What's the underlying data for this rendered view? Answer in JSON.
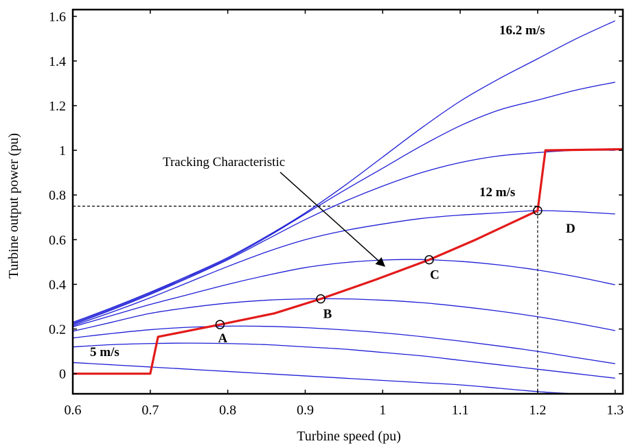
{
  "chart_data": {
    "type": "line",
    "xlabel": "Turbine speed (pu)",
    "ylabel": "Turbine output power (pu)",
    "xlim": [
      0.6,
      1.31
    ],
    "ylim": [
      -0.09,
      1.63
    ],
    "xticks": [
      0.6,
      0.7,
      0.8,
      0.9,
      1,
      1.1,
      1.2,
      1.3
    ],
    "xtick_labels": [
      "0.6",
      "0.7",
      "0.8",
      "0.9",
      "1",
      "1.1",
      "1.2",
      "1.3"
    ],
    "yticks": [
      0,
      0.2,
      0.4,
      0.6,
      0.8,
      1,
      1.2,
      1.4,
      1.6
    ],
    "ytick_labels": [
      "0",
      "0.2",
      "0.4",
      "0.6",
      "0.8",
      "1",
      "1.2",
      "1.4",
      "1.6"
    ],
    "grid": false,
    "wind_speed_curves": {
      "color": "#1f1fd6",
      "x": [
        0.6,
        0.65,
        0.7,
        0.75,
        0.8,
        0.85,
        0.9,
        0.95,
        1.0,
        1.05,
        1.1,
        1.15,
        1.2,
        1.25,
        1.3
      ],
      "series": [
        {
          "values": [
            0.05,
            0.04,
            0.03,
            0.02,
            0.01,
            0.0,
            -0.01,
            -0.02,
            -0.03,
            -0.04,
            -0.05,
            -0.065,
            -0.08,
            -0.09,
            -0.09
          ]
        },
        {
          "values": [
            0.12,
            0.13,
            0.135,
            0.137,
            0.135,
            0.13,
            0.12,
            0.11,
            0.095,
            0.08,
            0.06,
            0.04,
            0.02,
            0.0,
            -0.02
          ]
        },
        {
          "values": [
            0.16,
            0.18,
            0.197,
            0.208,
            0.213,
            0.212,
            0.206,
            0.196,
            0.183,
            0.166,
            0.146,
            0.124,
            0.1,
            0.072,
            0.045
          ]
        },
        {
          "values": [
            0.19,
            0.23,
            0.27,
            0.296,
            0.316,
            0.329,
            0.335,
            0.335,
            0.329,
            0.318,
            0.301,
            0.28,
            0.255,
            0.226,
            0.193
          ]
        },
        {
          "values": [
            0.21,
            0.26,
            0.31,
            0.355,
            0.4,
            0.44,
            0.475,
            0.497,
            0.509,
            0.511,
            0.503,
            0.487,
            0.464,
            0.434,
            0.398
          ]
        },
        {
          "values": [
            0.215,
            0.275,
            0.34,
            0.41,
            0.48,
            0.545,
            0.6,
            0.64,
            0.67,
            0.695,
            0.71,
            0.72,
            0.73,
            0.725,
            0.715
          ]
        },
        {
          "values": [
            0.22,
            0.285,
            0.355,
            0.43,
            0.51,
            0.6,
            0.69,
            0.77,
            0.84,
            0.9,
            0.945,
            0.975,
            0.99,
            1.0,
            1.0
          ]
        },
        {
          "values": [
            0.225,
            0.29,
            0.36,
            0.435,
            0.515,
            0.61,
            0.715,
            0.82,
            0.92,
            1.02,
            1.11,
            1.18,
            1.225,
            1.27,
            1.305
          ]
        },
        {
          "values": [
            0.23,
            0.295,
            0.365,
            0.44,
            0.52,
            0.615,
            0.72,
            0.84,
            0.97,
            1.1,
            1.22,
            1.32,
            1.41,
            1.5,
            1.58
          ]
        }
      ]
    },
    "tracking_characteristic": {
      "color": "#e31a1a",
      "x": [
        0.6,
        0.7,
        0.71,
        0.79,
        0.86,
        0.92,
        0.99,
        1.06,
        1.12,
        1.2,
        1.21,
        1.31
      ],
      "y": [
        0.0,
        0.0,
        0.165,
        0.22,
        0.27,
        0.335,
        0.42,
        0.51,
        0.6,
        0.73,
        1.0,
        1.005
      ]
    },
    "operating_points": [
      {
        "label": "A",
        "x": 0.79,
        "y": 0.22
      },
      {
        "label": "B",
        "x": 0.92,
        "y": 0.335
      },
      {
        "label": "C",
        "x": 1.06,
        "y": 0.51
      },
      {
        "label": "D",
        "x": 1.2,
        "y": 0.73
      }
    ],
    "reference_lines": [
      {
        "orientation": "horizontal",
        "value": 0.75
      },
      {
        "orientation": "vertical",
        "value": 1.2
      }
    ],
    "annotations": {
      "tracking_label": "Tracking Characteristic",
      "wind_top": "16.2 m/s",
      "wind_mid": "12 m/s",
      "wind_low": "5 m/s"
    }
  }
}
